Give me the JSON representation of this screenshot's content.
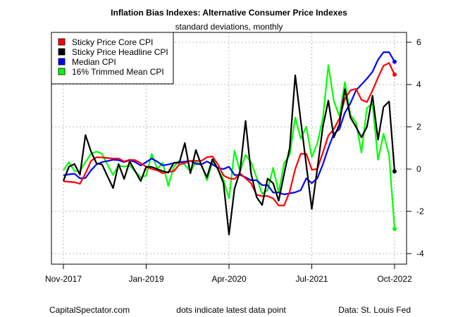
{
  "chart_data": {
    "type": "line",
    "title": "Inflation Bias Indexes: Alternative Consumer Price Indexes",
    "subtitle": "standard deviations, monthly",
    "xlabel": "",
    "ylabel": "",
    "x_tick_labels": [
      "Nov-2017",
      "Jan-2019",
      "Apr-2020",
      "Jul-2021",
      "Oct-2022"
    ],
    "x_tick_indices": [
      0,
      15,
      30,
      45,
      60
    ],
    "y_ticks": [
      6,
      4,
      2,
      0,
      -2,
      -4
    ],
    "ylim": [
      -4.5,
      6.2
    ],
    "grid": true,
    "legend_position": "top-left",
    "series": [
      {
        "name": "Sticky Price Core CPI",
        "color": "#ff0000",
        "values": [
          -0.58,
          -0.6,
          -0.62,
          -0.7,
          -0.2,
          0.39,
          0.56,
          0.55,
          0.52,
          0.5,
          0.5,
          0.36,
          0.44,
          0.42,
          0.28,
          0.11,
          0.0,
          -0.06,
          -0.2,
          -0.13,
          -0.1,
          0.22,
          0.28,
          0.39,
          0.39,
          0.39,
          0.56,
          0.6,
          0.22,
          -0.3,
          -0.44,
          -0.47,
          -0.2,
          -0.44,
          -0.67,
          -1.22,
          -1.28,
          -1.28,
          -1.39,
          -1.72,
          -1.72,
          -1.06,
          0.0,
          0.72,
          0.72,
          -0.03,
          0.0,
          0.78,
          1.58,
          1.89,
          2.39,
          3.33,
          3.72,
          3.8,
          3.28,
          3.17,
          3.72,
          4.33,
          4.89,
          5.02,
          4.47
        ]
      },
      {
        "name": "Sticky Price Headline CPI",
        "color": "#000000",
        "values": [
          -0.56,
          0.11,
          0.24,
          -0.27,
          1.61,
          0.83,
          0.27,
          0.22,
          -0.35,
          -0.9,
          0.24,
          -0.47,
          0.36,
          -0.1,
          -0.57,
          0.11,
          0.1,
          0.0,
          -0.1,
          -0.17,
          0.3,
          0.3,
          1.23,
          -0.2,
          0.9,
          0.17,
          -0.39,
          0.47,
          0.0,
          -0.67,
          -3.1,
          -0.93,
          -0.1,
          2.28,
          -0.2,
          -1.33,
          -1.7,
          -0.45,
          -0.67,
          -1.5,
          -0.22,
          1.0,
          4.44,
          2.3,
          0.2,
          -1.89,
          0.0,
          2.0,
          3.24,
          1.5,
          2.11,
          3.78,
          2.44,
          2.0,
          1.5,
          2.0,
          3.47,
          1.39,
          2.94,
          3.2,
          -0.11
        ]
      },
      {
        "name": "Median CPI",
        "color": "#0000ff",
        "values": [
          -0.3,
          -0.25,
          -0.22,
          -0.44,
          -0.42,
          -0.06,
          0.22,
          0.33,
          0.38,
          0.44,
          0.42,
          0.33,
          0.42,
          0.33,
          0.17,
          0.33,
          0.5,
          0.35,
          0.17,
          0.22,
          0.28,
          0.33,
          0.35,
          0.39,
          0.25,
          0.22,
          0.36,
          0.22,
          0.06,
          0.0,
          0.11,
          -0.28,
          -0.28,
          -0.39,
          -0.53,
          -0.53,
          -0.76,
          -0.76,
          -1.11,
          -1.11,
          -1.2,
          -1.15,
          -1.1,
          -1.0,
          -0.44,
          -0.67,
          -0.44,
          0.22,
          1.0,
          1.67,
          1.89,
          2.67,
          3.11,
          3.72,
          4.0,
          4.28,
          4.61,
          5.17,
          5.53,
          5.53,
          5.08
        ]
      },
      {
        "name": "16% Trimmed Mean CPI",
        "color": "#00ff00",
        "values": [
          -0.06,
          0.33,
          -0.09,
          -0.09,
          0.33,
          0.72,
          0.83,
          0.72,
          0.2,
          -0.28,
          0.17,
          0.11,
          0.17,
          -0.1,
          -0.39,
          -0.31,
          0.72,
          0.0,
          0.3,
          -0.8,
          0.11,
          0.39,
          0.2,
          -0.1,
          0.33,
          0.22,
          -0.53,
          0.33,
          0.0,
          -0.5,
          -1.39,
          0.87,
          -0.11,
          0.67,
          0.33,
          -0.4,
          -1.17,
          -1.0,
          0.06,
          -1.11,
          0.28,
          0.67,
          2.44,
          1.44,
          2.0,
          0.56,
          1.22,
          2.39,
          4.91,
          3.22,
          2.5,
          4.11,
          2.56,
          2.22,
          0.78,
          2.89,
          3.09,
          0.44,
          1.67,
          0.67,
          -2.83
        ]
      }
    ],
    "annotations": [
      "dots indicate latest data point"
    ]
  },
  "footer": {
    "source_site": "CapitalSpectator.com",
    "note": "dots indicate latest data point",
    "data_source": "Data: St. Louis Fed"
  }
}
